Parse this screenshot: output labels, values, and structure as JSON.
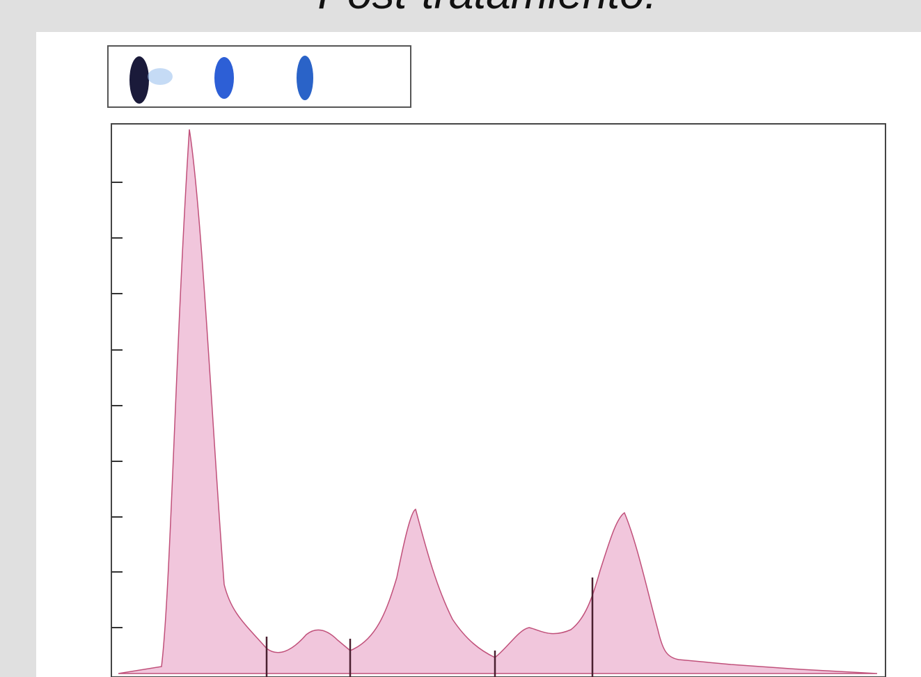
{
  "header": {
    "title": "Post-tratamiento:"
  }
}
